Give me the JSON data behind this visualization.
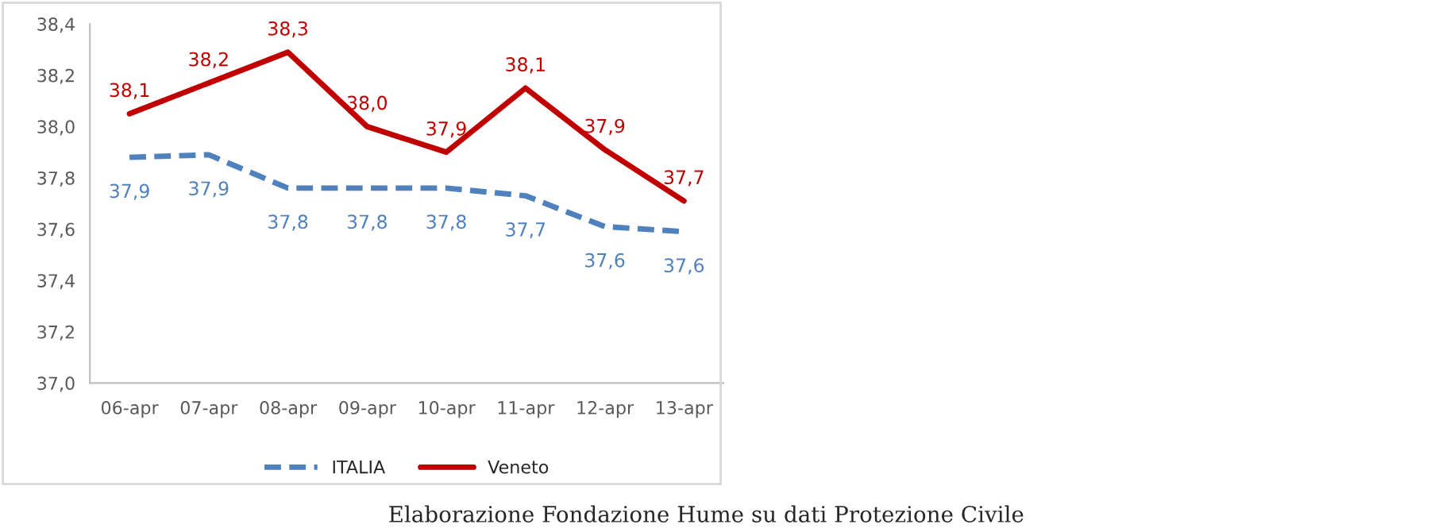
{
  "chart_data": {
    "type": "line",
    "categories": [
      "06-apr",
      "07-apr",
      "08-apr",
      "09-apr",
      "10-apr",
      "11-apr",
      "12-apr",
      "13-apr"
    ],
    "series": [
      {
        "name": "ITALIA",
        "color": "#4f81bd",
        "line_style": "dashed",
        "values": [
          37.88,
          37.89,
          37.76,
          37.76,
          37.76,
          37.73,
          37.61,
          37.59
        ],
        "value_labels": [
          "37,9",
          "37,9",
          "37,8",
          "37,8",
          "37,8",
          "37,7",
          "37,6",
          "37,6"
        ]
      },
      {
        "name": "Veneto",
        "color": "#c00000",
        "line_style": "solid",
        "values": [
          38.05,
          38.17,
          38.29,
          38.0,
          37.9,
          38.15,
          37.91,
          37.71
        ],
        "value_labels": [
          "38,1",
          "38,2",
          "38,3",
          "38,0",
          "37,9",
          "38,1",
          "37,9",
          "37,7"
        ]
      }
    ],
    "ylim": [
      37.0,
      38.4
    ],
    "yticks": [
      {
        "value": 37.0,
        "label": "37,0"
      },
      {
        "value": 37.2,
        "label": "37,2"
      },
      {
        "value": 37.4,
        "label": "37,4"
      },
      {
        "value": 37.6,
        "label": "37,6"
      },
      {
        "value": 37.8,
        "label": "37,8"
      },
      {
        "value": 38.0,
        "label": "38,0"
      },
      {
        "value": 38.2,
        "label": "38,2"
      },
      {
        "value": 38.4,
        "label": "38,4"
      }
    ],
    "grid": false,
    "legend": "bottom",
    "marker": "none",
    "annotations": [
      "Elaborazione Fondazione Hume su dati Protezione Civile"
    ]
  }
}
